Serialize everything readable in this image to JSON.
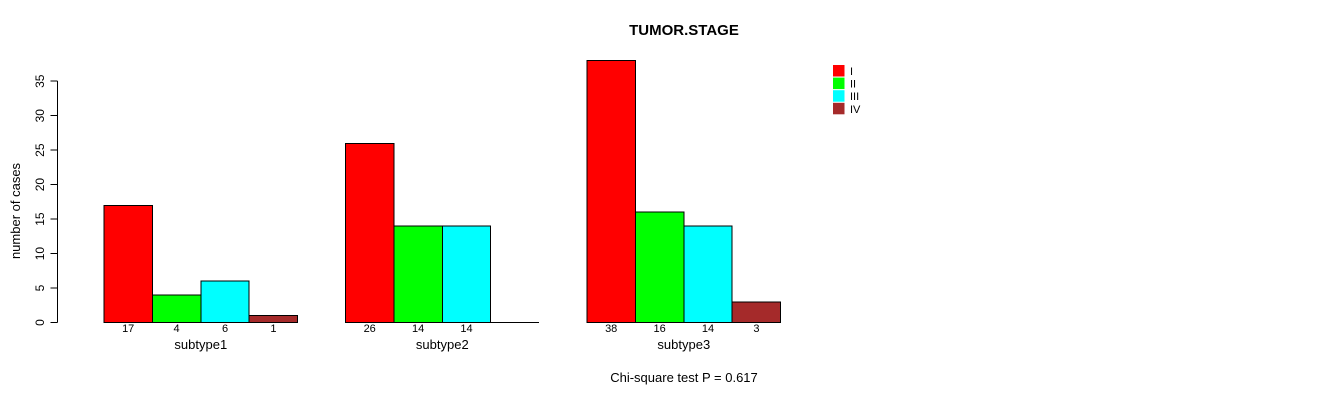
{
  "chart_data": {
    "type": "bar",
    "title": "TUMOR.STAGE",
    "ylabel": "number of cases",
    "xlabel": "",
    "categories": [
      "subtype1",
      "subtype2",
      "subtype3"
    ],
    "series": [
      {
        "name": "I",
        "color": "#ff0000",
        "values": [
          17,
          26,
          38
        ]
      },
      {
        "name": "II",
        "color": "#00ff00",
        "values": [
          4,
          14,
          16
        ]
      },
      {
        "name": "III",
        "color": "#00ffff",
        "values": [
          6,
          14,
          14
        ]
      },
      {
        "name": "IV",
        "color": "#a52a2a",
        "values": [
          1,
          0,
          3
        ]
      }
    ],
    "bar_value_labels_shown": true,
    "y_ticks": [
      0,
      5,
      10,
      15,
      20,
      25,
      30,
      35
    ],
    "ylim": [
      0,
      35
    ],
    "grid": false,
    "legend_position": "top-right",
    "annotation": "Chi-square test P = 0.617",
    "colors": {
      "axis": "#000000",
      "bar_border": "#000000",
      "background": "#ffffff"
    }
  }
}
